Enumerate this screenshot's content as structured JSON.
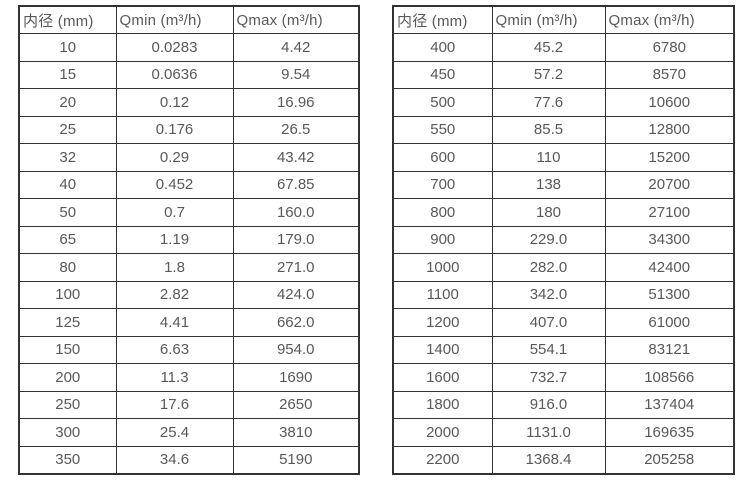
{
  "page": {
    "background": "#ffffff"
  },
  "colors": {
    "border": "#333333",
    "text": "#595959"
  },
  "tables": [
    {
      "name": "flow-spec-table-small-diameters",
      "headers": [
        "内径 (mm)",
        "Qmin (m³/h)",
        "Qmax (m³/h)"
      ],
      "rows": [
        [
          "10",
          "0.0283",
          "4.42"
        ],
        [
          "15",
          "0.0636",
          "9.54"
        ],
        [
          "20",
          "0.12",
          "16.96"
        ],
        [
          "25",
          "0.176",
          "26.5"
        ],
        [
          "32",
          "0.29",
          "43.42"
        ],
        [
          "40",
          "0.452",
          "67.85"
        ],
        [
          "50",
          "0.7",
          "160.0"
        ],
        [
          "65",
          "1.19",
          "179.0"
        ],
        [
          "80",
          "1.8",
          "271.0"
        ],
        [
          "100",
          "2.82",
          "424.0"
        ],
        [
          "125",
          "4.41",
          "662.0"
        ],
        [
          "150",
          "6.63",
          "954.0"
        ],
        [
          "200",
          "11.3",
          "1690"
        ],
        [
          "250",
          "17.6",
          "2650"
        ],
        [
          "300",
          "25.4",
          "3810"
        ],
        [
          "350",
          "34.6",
          "5190"
        ]
      ]
    },
    {
      "name": "flow-spec-table-large-diameters",
      "headers": [
        "内径 (mm)",
        "Qmin (m³/h)",
        "Qmax (m³/h)"
      ],
      "rows": [
        [
          "400",
          "45.2",
          "6780"
        ],
        [
          "450",
          "57.2",
          "8570"
        ],
        [
          "500",
          "77.6",
          "10600"
        ],
        [
          "550",
          "85.5",
          "12800"
        ],
        [
          "600",
          "110",
          "15200"
        ],
        [
          "700",
          "138",
          "20700"
        ],
        [
          "800",
          "180",
          "27100"
        ],
        [
          "900",
          "229.0",
          "34300"
        ],
        [
          "1000",
          "282.0",
          "42400"
        ],
        [
          "1100",
          "342.0",
          "51300"
        ],
        [
          "1200",
          "407.0",
          "61000"
        ],
        [
          "1400",
          "554.1",
          "83121"
        ],
        [
          "1600",
          "732.7",
          "108566"
        ],
        [
          "1800",
          "916.0",
          "137404"
        ],
        [
          "2000",
          "1131.0",
          "169635"
        ],
        [
          "2200",
          "1368.4",
          "205258"
        ]
      ]
    }
  ]
}
